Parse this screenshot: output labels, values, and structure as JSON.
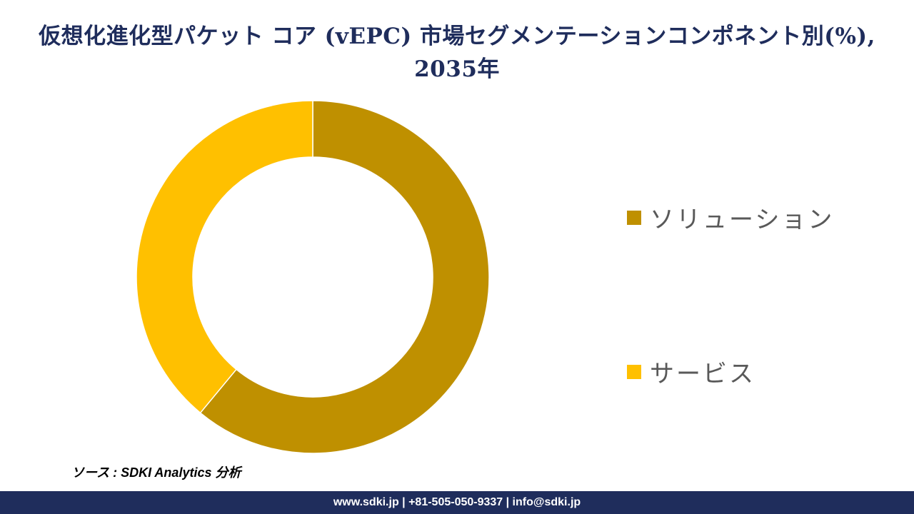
{
  "chart_data": {
    "type": "pie",
    "style": "donut",
    "title": "仮想化進化型パケット コア (vEPC) 市場セグメンテーションコンポネント別(%), 2035年",
    "categories": [
      "ソリューション",
      "サービス"
    ],
    "values": [
      61,
      39
    ],
    "colors": [
      "#bf9000",
      "#ffc000"
    ],
    "legend_position": "right"
  },
  "source": "ソース : SDKI Analytics 分析",
  "footer": "www.sdki.jp | +81-505-050-9337 | info@sdki.jp"
}
